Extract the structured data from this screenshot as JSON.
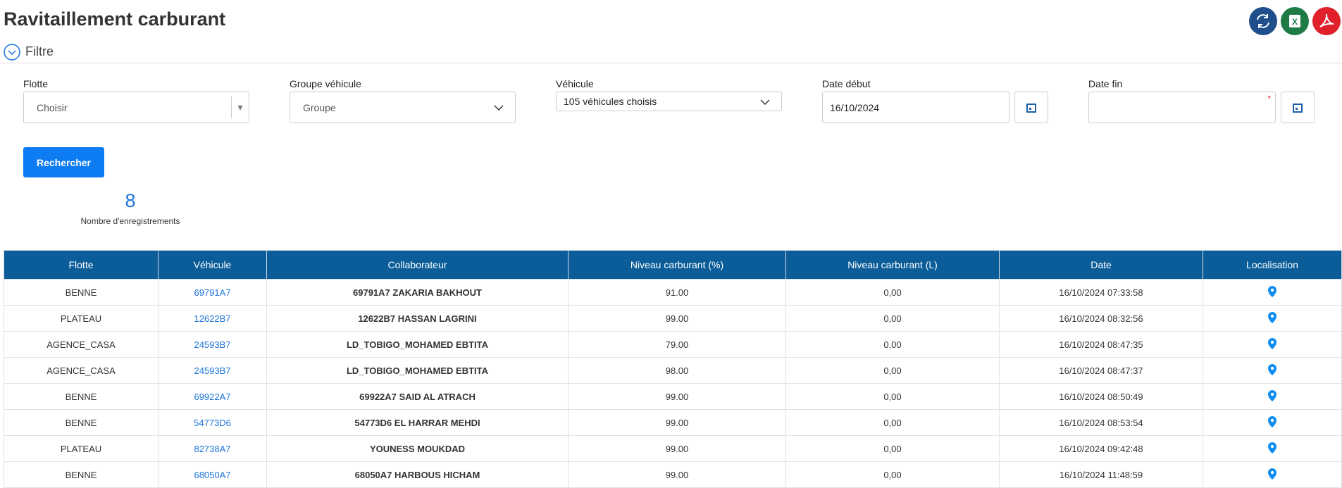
{
  "header": {
    "title": "Ravitaillement carburant"
  },
  "filter": {
    "toggle_label": "Filtre",
    "fields": [
      {
        "label": "Flotte",
        "value": "Choisir"
      },
      {
        "label": "Groupe véhicule",
        "value": "Groupe"
      },
      {
        "label": "Véhicule",
        "value": "105 véhicules choisis"
      },
      {
        "label": "Date début",
        "value": "16/10/2024"
      },
      {
        "label": "Date fin",
        "value": "*"
      }
    ],
    "button": "Rechercher"
  },
  "stats": {
    "count": "8",
    "label": "Nombre d'enregistrements"
  },
  "table": {
    "columns": [
      "Flotte",
      "Véhicule",
      "Collaborateur",
      "Niveau carburant (%)",
      "Niveau carburant (L)",
      "Date",
      "Localisation"
    ],
    "rows": [
      [
        "BENNE",
        "69791A7",
        "69791A7 ZAKARIA BAKHOUT",
        "91.00",
        "0,00",
        "16/10/2024 07:33:58"
      ],
      [
        "PLATEAU",
        "12622B7",
        "12622B7 HASSAN LAGRINI",
        "99.00",
        "0,00",
        "16/10/2024 08:32:56"
      ],
      [
        "AGENCE_CASA",
        "24593B7",
        "LD_TOBIGO_MOHAMED EBTITA",
        "79.00",
        "0,00",
        "16/10/2024 08:47:35"
      ],
      [
        "AGENCE_CASA",
        "24593B7",
        "LD_TOBIGO_MOHAMED EBTITA",
        "98.00",
        "0,00",
        "16/10/2024 08:47:37"
      ],
      [
        "BENNE",
        "69922A7",
        "69922A7 SAID AL ATRACH",
        "99.00",
        "0,00",
        "16/10/2024 08:50:49"
      ],
      [
        "BENNE",
        "54773D6",
        "54773D6 EL HARRAR MEHDI",
        "99.00",
        "0,00",
        "16/10/2024 08:53:54"
      ],
      [
        "PLATEAU",
        "82738A7",
        "YOUNESS MOUKDAD",
        "99.00",
        "0,00",
        "16/10/2024 09:42:48"
      ],
      [
        "BENNE",
        "68050A7",
        "68050A7 HARBOUS HICHAM",
        "99.00",
        "0,00",
        "16/10/2024 11:48:59"
      ]
    ]
  }
}
